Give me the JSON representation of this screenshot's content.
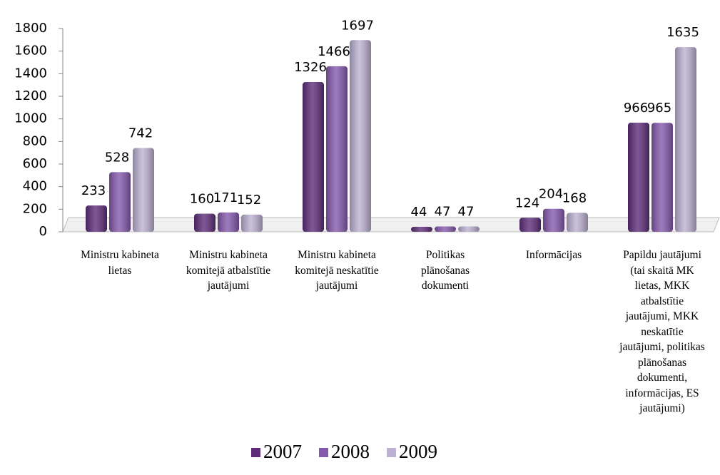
{
  "chart_data": {
    "type": "bar",
    "categories": [
      "Ministru kabineta lietas",
      "Ministru kabineta komitejā atbalstītie jautājumi",
      "Ministru kabineta komitejā neskatītie jautājumi",
      "Politikas plānošanas dokumenti",
      "Informācijas",
      "Papildu jautājumi (tai skaitā MK lietas, MKK atbalstītie jautājumi, MKK neskatītie jautājumi, politikas plānošanas dokumenti, informācijas, ES jautājumi)"
    ],
    "series": [
      {
        "name": "2007",
        "color": "#5e2d79",
        "values": [
          233,
          160,
          1326,
          44,
          124,
          966
        ]
      },
      {
        "name": "2008",
        "color": "#8559ad",
        "values": [
          528,
          171,
          1466,
          47,
          204,
          965
        ]
      },
      {
        "name": "2009",
        "color": "#bdb1d3",
        "values": [
          742,
          152,
          1697,
          47,
          168,
          1635
        ]
      }
    ],
    "ylim": [
      0,
      1800
    ],
    "yticks": [
      0,
      200,
      400,
      600,
      800,
      1000,
      1200,
      1400,
      1600,
      1800
    ]
  }
}
